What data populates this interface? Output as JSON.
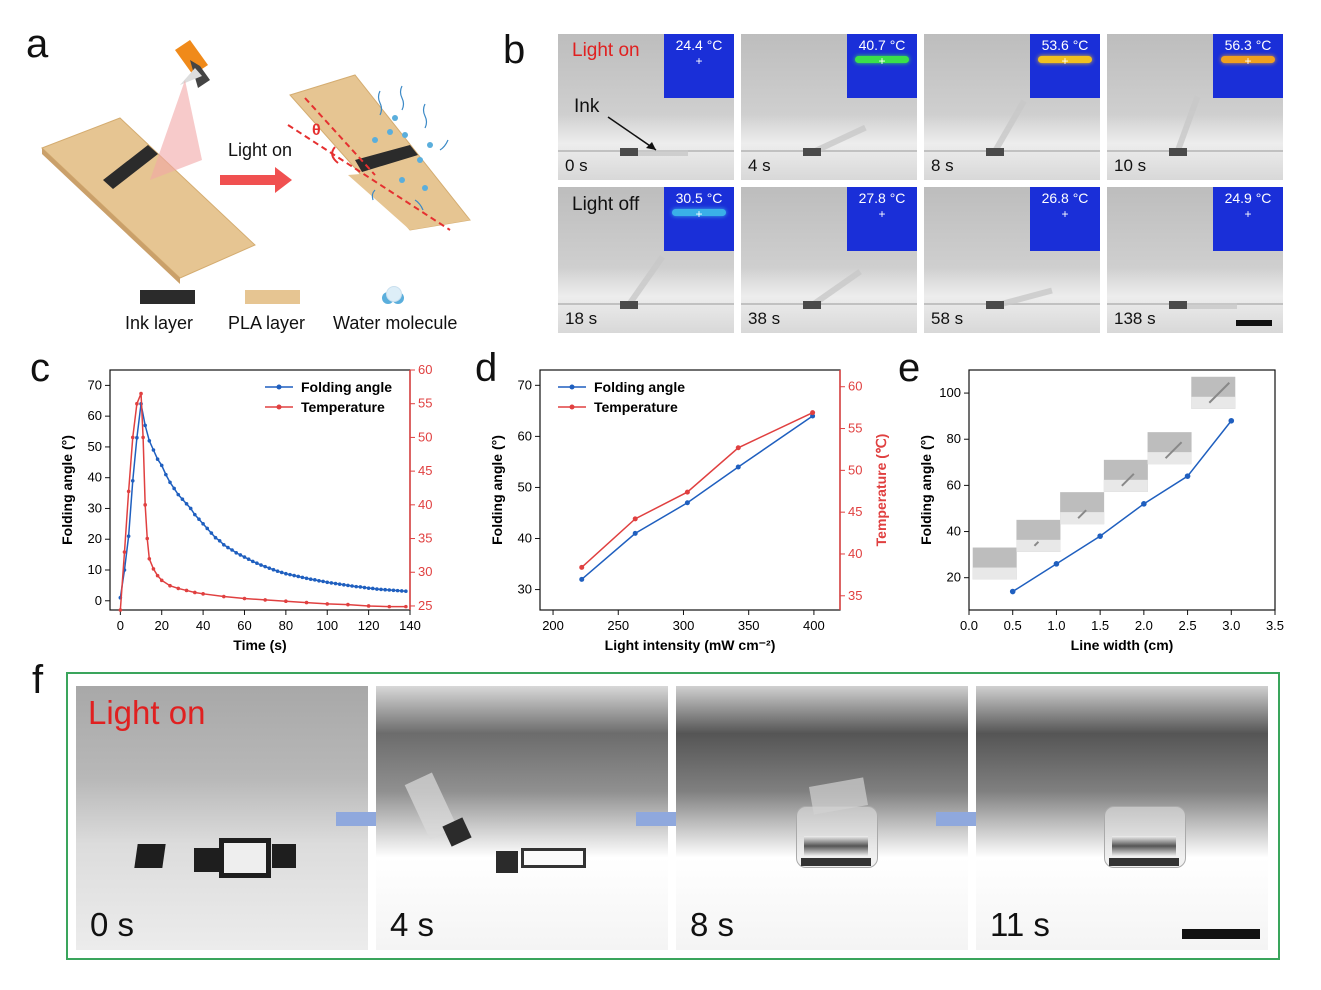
{
  "panels": {
    "a": "a",
    "b": "b",
    "c": "c",
    "d": "d",
    "e": "e",
    "f": "f"
  },
  "panel_a": {
    "arrow_label": "Light on",
    "angle_label": "θ",
    "legend": [
      "Ink layer",
      "PLA layer",
      "Water molecule"
    ]
  },
  "panel_b": {
    "light_on": "Light on",
    "light_off": "Light off",
    "ink": "Ink",
    "top_row": [
      {
        "time": "0 s",
        "temp": "24.4 °C"
      },
      {
        "time": "4 s",
        "temp": "40.7 °C"
      },
      {
        "time": "8 s",
        "temp": "53.6 °C"
      },
      {
        "time": "10 s",
        "temp": "56.3 °C"
      }
    ],
    "bottom_row": [
      {
        "time": "18 s",
        "temp": "30.5 °C"
      },
      {
        "time": "38 s",
        "temp": "27.8 °C"
      },
      {
        "time": "58 s",
        "temp": "26.8 °C"
      },
      {
        "time": "138 s",
        "temp": "24.9 °C"
      }
    ]
  },
  "panel_f": {
    "light_on": "Light on",
    "frames": [
      "0 s",
      "4 s",
      "8 s",
      "11 s"
    ]
  },
  "chart_data": [
    {
      "id": "c",
      "type": "line",
      "xlabel": "Time (s)",
      "ylabel": "Folding angle (°)",
      "y2label": "Temperature (℃)",
      "xlim": [
        -5,
        140
      ],
      "ylim": [
        -3,
        75
      ],
      "y2lim": [
        24.4,
        60
      ],
      "xticks": [
        "0",
        "20",
        "40",
        "60",
        "80",
        "100",
        "120",
        "140"
      ],
      "yticks": [
        "0",
        "10",
        "20",
        "30",
        "40",
        "50",
        "60",
        "70"
      ],
      "y2ticks": [
        "25",
        "30",
        "35",
        "40",
        "45",
        "50",
        "55",
        "60"
      ],
      "legend_position": "top-right",
      "series": [
        {
          "name": "Folding angle",
          "color": "#1f5fbf",
          "axis": "left",
          "x": [
            0,
            2,
            4,
            6,
            8,
            10,
            12,
            14,
            16,
            18,
            20,
            22,
            24,
            26,
            28,
            30,
            32,
            34,
            36,
            38,
            40,
            42,
            44,
            46,
            48,
            50,
            52,
            54,
            56,
            58,
            60,
            62,
            64,
            66,
            68,
            70,
            72,
            74,
            76,
            78,
            80,
            82,
            84,
            86,
            88,
            90,
            92,
            94,
            96,
            98,
            100,
            102,
            104,
            106,
            108,
            110,
            112,
            114,
            116,
            118,
            120,
            122,
            124,
            126,
            128,
            130,
            132,
            134,
            136,
            138
          ],
          "values": [
            1,
            10,
            21,
            39,
            53,
            64,
            57,
            52,
            49,
            46,
            44,
            41,
            38.5,
            36.5,
            34.5,
            33,
            31.5,
            30,
            28,
            26.5,
            25,
            23.5,
            22,
            20.5,
            19.5,
            18.2,
            17.3,
            16.5,
            15.6,
            14.9,
            14.2,
            13.5,
            12.8,
            12.2,
            11.6,
            11.1,
            10.6,
            10.1,
            9.6,
            9.2,
            8.8,
            8.5,
            8.2,
            7.9,
            7.6,
            7.3,
            7.0,
            6.8,
            6.5,
            6.3,
            6.0,
            5.8,
            5.6,
            5.4,
            5.2,
            5.0,
            4.8,
            4.6,
            4.5,
            4.3,
            4.1,
            4.0,
            3.8,
            3.7,
            3.6,
            3.5,
            3.4,
            3.3,
            3.2,
            3.1
          ]
        },
        {
          "name": "Temperature",
          "color": "#e04040",
          "axis": "right",
          "x": [
            0,
            2,
            4,
            6,
            8,
            10,
            11,
            12,
            13,
            14,
            16,
            18,
            20,
            24,
            28,
            32,
            36,
            40,
            50,
            60,
            70,
            80,
            90,
            100,
            110,
            120,
            130,
            138
          ],
          "values": [
            24.4,
            33,
            42,
            50,
            55,
            56.5,
            50,
            40,
            35,
            32,
            30.5,
            29.5,
            28.8,
            28,
            27.6,
            27.3,
            27.0,
            26.8,
            26.4,
            26.1,
            25.9,
            25.7,
            25.5,
            25.3,
            25.2,
            25.0,
            24.9,
            24.9
          ]
        }
      ]
    },
    {
      "id": "d",
      "type": "line",
      "xlabel": "Light intensity (mW cm⁻²)",
      "ylabel": "Folding angle (°)",
      "y2label": "Temperature (℃)",
      "xlim": [
        190,
        420
      ],
      "ylim": [
        26,
        73
      ],
      "y2lim": [
        33.3,
        62
      ],
      "xticks": [
        "200",
        "250",
        "300",
        "350",
        "400"
      ],
      "yticks": [
        "30",
        "40",
        "50",
        "60",
        "70"
      ],
      "y2ticks": [
        "35",
        "40",
        "45",
        "50",
        "55",
        "60"
      ],
      "legend_position": "top-left",
      "series": [
        {
          "name": "Folding angle",
          "color": "#1f5fbf",
          "axis": "left",
          "x": [
            222,
            263,
            303,
            342,
            399
          ],
          "values": [
            32,
            41,
            47,
            54,
            64
          ]
        },
        {
          "name": "Temperature",
          "color": "#e04040",
          "axis": "right",
          "x": [
            222,
            263,
            303,
            342,
            399
          ],
          "values": [
            38.4,
            44.2,
            47.4,
            52.7,
            56.9
          ]
        }
      ]
    },
    {
      "id": "e",
      "type": "line",
      "xlabel": "Line width (cm)",
      "ylabel": "Folding angle (°)",
      "xlim": [
        0,
        3.5
      ],
      "ylim": [
        6,
        110
      ],
      "xticks": [
        "0.0",
        "0.5",
        "1.0",
        "1.5",
        "2.0",
        "2.5",
        "3.0",
        "3.5"
      ],
      "yticks": [
        "20",
        "40",
        "60",
        "80",
        "100"
      ],
      "series": [
        {
          "color": "#1f5fbf",
          "x": [
            0.5,
            1.0,
            1.5,
            2.0,
            2.5,
            3.0
          ],
          "values": [
            14,
            26,
            38,
            52,
            64,
            88
          ]
        }
      ]
    }
  ],
  "colors": {
    "blue": "#1f5fbf",
    "red": "#e04040",
    "pla": "#e3c08a",
    "ink": "#2a2a2a",
    "frame_green": "#3aa55c",
    "light_text": "#e02020"
  }
}
